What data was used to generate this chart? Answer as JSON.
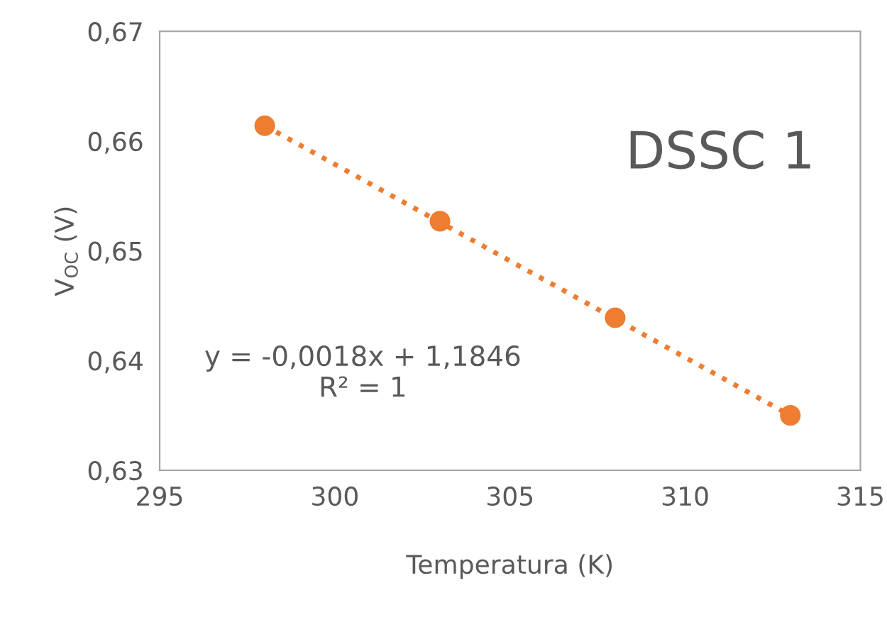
{
  "chart_data": {
    "type": "scatter",
    "title": "DSSC 1",
    "xlabel": "Temperatura (K)",
    "ylabel": "V$_{OC}$ (V)",
    "series": [
      {
        "color": "#ed7d31",
        "marker": "circle",
        "x": [
          298,
          303,
          308,
          313
        ],
        "values": [
          0.6614,
          0.6527,
          0.6439,
          0.635
        ]
      },
      {
        "type": "line",
        "color": "#ed7d31",
        "marker": "none",
        "line_style": "dotted",
        "x": [
          298,
          313
        ],
        "values": [
          0.6614,
          0.635
        ]
      }
    ],
    "annotations": [
      "y = -0,0018x + 1,1846\nR² = 1"
    ],
    "xlim": [
      295,
      315
    ],
    "xticks": [
      295,
      300,
      305,
      310,
      315
    ],
    "ylim": [
      0.63,
      0.67
    ],
    "yticks": [
      {
        "value": 0.63,
        "label": "0,63"
      },
      {
        "value": 0.64,
        "label": "0,64"
      },
      {
        "value": 0.65,
        "label": "0,65"
      },
      {
        "value": 0.66,
        "label": "0,66"
      },
      {
        "value": 0.67,
        "label": "0,67"
      }
    ],
    "grid": false,
    "legend": false
  }
}
